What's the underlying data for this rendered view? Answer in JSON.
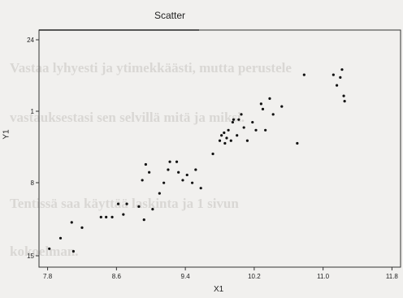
{
  "background_text": [
    "Vastaa lyhyesti ja ytimekkäästi, mutta perustele",
    "vastauksestasi sen selvillä mitä ja miksi.",
    "Tentissä saa käyttää laskinta ja 1 sivun",
    "kokoelman."
  ],
  "chart_data": {
    "type": "scatter",
    "title": "Scatter",
    "xlabel": "X1",
    "ylabel": "Y1",
    "xlim": [
      7.7,
      11.9
    ],
    "ylim": [
      15.5,
      24.5
    ],
    "x_ticks": [
      "7.8",
      "8.6",
      "9.4",
      "10.2",
      "11.0",
      "11.8"
    ],
    "y_ticks": [
      "24",
      "1",
      "8",
      "15"
    ],
    "x": [
      7.82,
      7.95,
      8.08,
      8.1,
      8.2,
      8.42,
      8.48,
      8.55,
      8.62,
      8.68,
      8.72,
      8.86,
      8.9,
      8.92,
      8.94,
      8.98,
      9.02,
      9.1,
      9.15,
      9.2,
      9.22,
      9.3,
      9.32,
      9.37,
      9.42,
      9.48,
      9.52,
      9.58,
      9.72,
      9.8,
      9.82,
      9.85,
      9.86,
      9.88,
      9.9,
      9.93,
      9.95,
      9.96,
      10.0,
      10.02,
      10.05,
      10.08,
      10.12,
      10.18,
      10.22,
      10.28,
      10.3,
      10.33,
      10.38,
      10.42,
      10.52,
      10.7,
      10.78,
      11.12,
      11.16,
      11.2,
      11.22,
      11.24,
      11.25
    ],
    "y": [
      16.2,
      16.6,
      17.2,
      16.1,
      17.0,
      17.4,
      17.4,
      17.4,
      17.9,
      17.5,
      17.9,
      17.8,
      18.8,
      17.3,
      19.4,
      19.1,
      17.7,
      18.3,
      18.7,
      19.2,
      19.5,
      19.5,
      19.1,
      18.8,
      19.0,
      18.7,
      19.2,
      18.5,
      19.8,
      20.3,
      20.5,
      20.6,
      20.2,
      20.4,
      20.7,
      20.3,
      21.0,
      21.1,
      20.5,
      21.1,
      21.3,
      20.8,
      20.3,
      21.0,
      20.7,
      21.7,
      21.5,
      20.7,
      21.9,
      21.3,
      21.6,
      20.2,
      22.8,
      22.8,
      22.4,
      22.7,
      23.0,
      22.0,
      21.8
    ]
  }
}
